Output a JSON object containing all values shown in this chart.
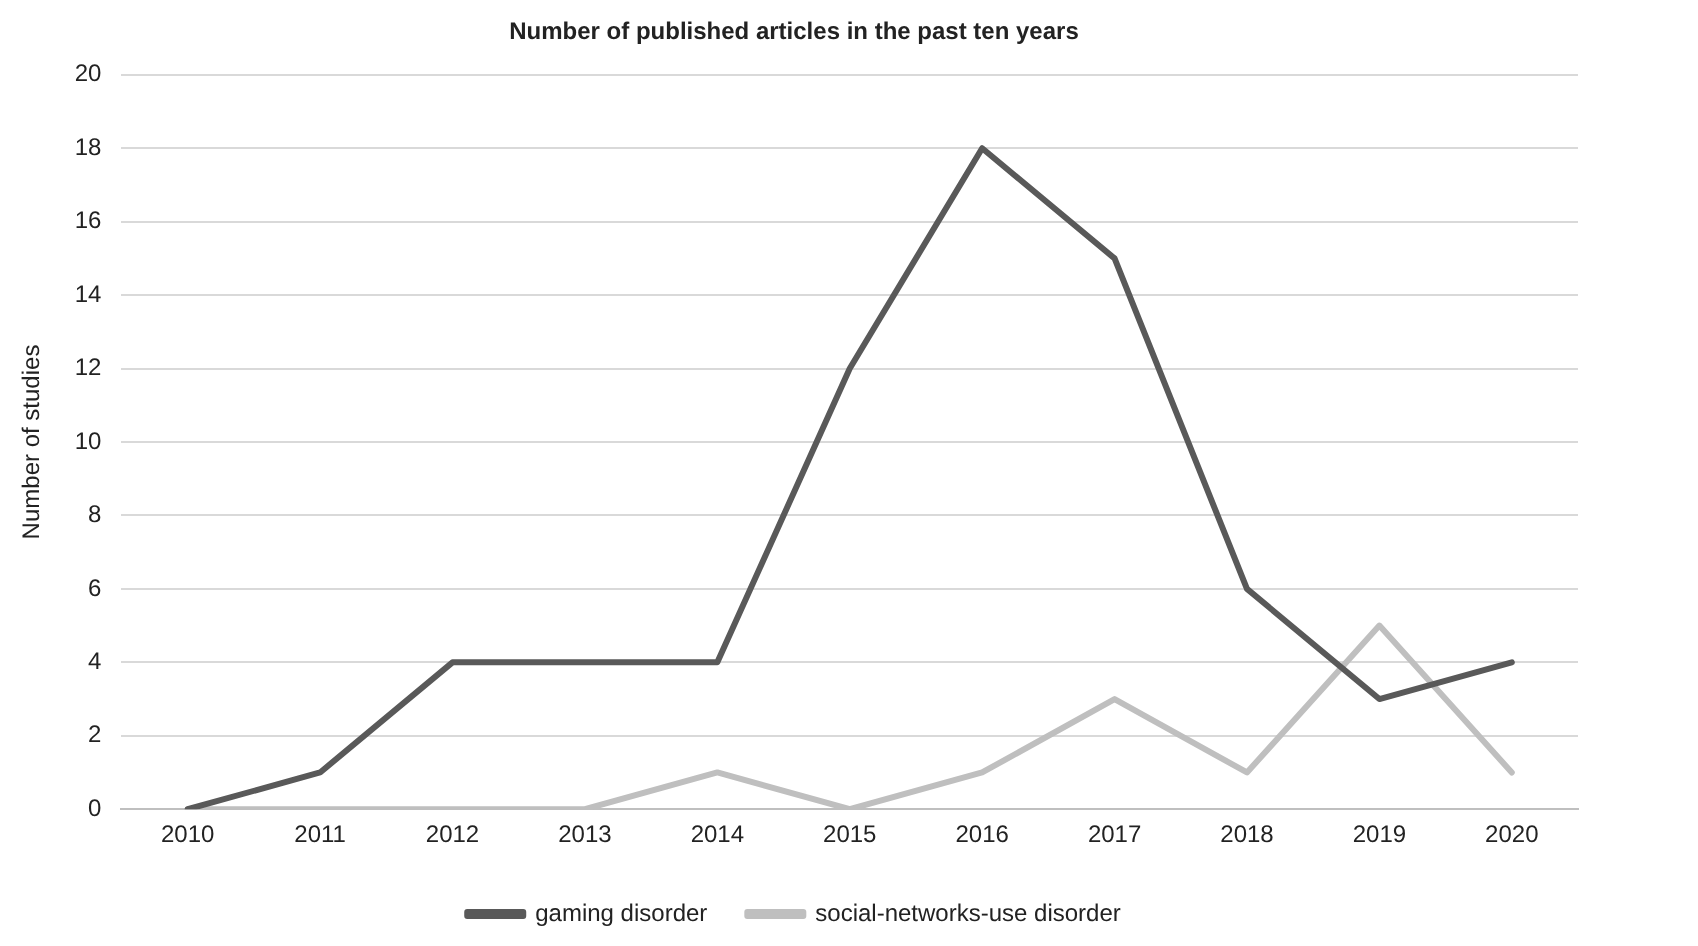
{
  "chart_data": {
    "type": "line",
    "title": "Number of published articles in the past ten years",
    "ylabel": "Number of studies",
    "categories": [
      "2010",
      "2011",
      "2012",
      "2013",
      "2014",
      "2015",
      "2016",
      "2017",
      "2018",
      "2019",
      "2020"
    ],
    "series": [
      {
        "name": "gaming disorder",
        "color": "#595959",
        "values": [
          0,
          1,
          4,
          4,
          4,
          12,
          18,
          15,
          6,
          3,
          4
        ]
      },
      {
        "name": "social-networks-use disorder",
        "color": "#bfbfbf",
        "values": [
          0,
          0,
          0,
          0,
          1,
          0,
          1,
          3,
          1,
          5,
          1
        ]
      }
    ],
    "ylim": [
      0,
      20
    ],
    "yticks": [
      0,
      2,
      4,
      6,
      8,
      10,
      12,
      14,
      16,
      18,
      20
    ],
    "grid": "y",
    "legend": "bottom",
    "marker": "none",
    "line_style": "solid"
  }
}
